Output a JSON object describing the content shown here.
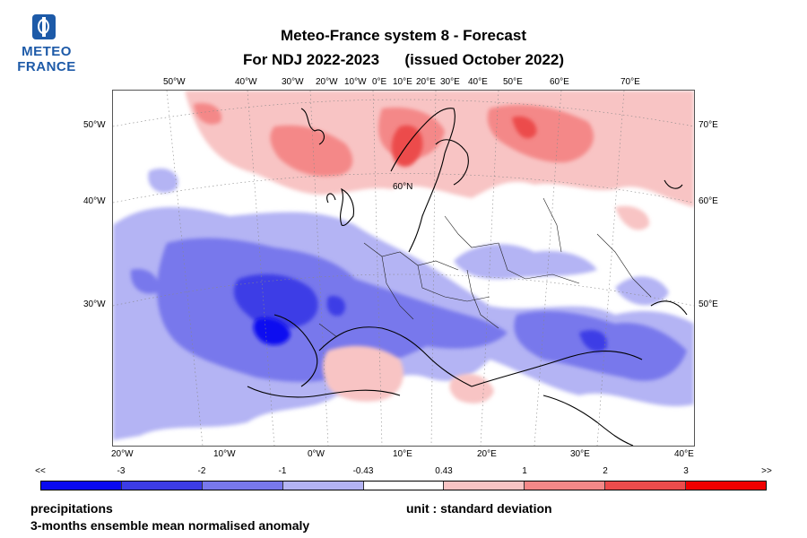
{
  "logo": {
    "line1": "METEO",
    "line2": "FRANCE",
    "color": "#1d5aa8"
  },
  "header": {
    "title_line1": "Meteo-France system 8  -  Forecast",
    "title_line2": "For NDJ 2022-2023      (issued October 2022)"
  },
  "axes": {
    "top_lon": [
      "50°W",
      "40°W",
      "30°W",
      "20°W",
      "10°W",
      "0°E",
      "10°E",
      "20°E",
      "30°E",
      "40°E",
      "50°E",
      "60°E",
      "70°E"
    ],
    "bottom_lon": [
      "20°W",
      "10°W",
      "0°W",
      "10°E",
      "20°E",
      "30°E",
      "40°E"
    ],
    "left_lat": [
      "50°W",
      "40°W",
      "30°W"
    ],
    "right_lat": [
      "70°E",
      "60°E",
      "50°E"
    ],
    "inner_label": "60°N"
  },
  "colorbar": {
    "labels": [
      "<<",
      "-3",
      "-2",
      "-1",
      "-0.43",
      "0.43",
      "1",
      "2",
      "3",
      ">>"
    ],
    "colors": [
      "#0a0af0",
      "#3c3ce6",
      "#7878ec",
      "#b4b4f4",
      "#ffffff",
      "#f8c4c4",
      "#f48888",
      "#ec4c4c",
      "#f00000"
    ]
  },
  "footer": {
    "variable": "precipitations",
    "description": "3-months ensemble mean normalised anomaly",
    "unit": "unit : standard deviation"
  }
}
